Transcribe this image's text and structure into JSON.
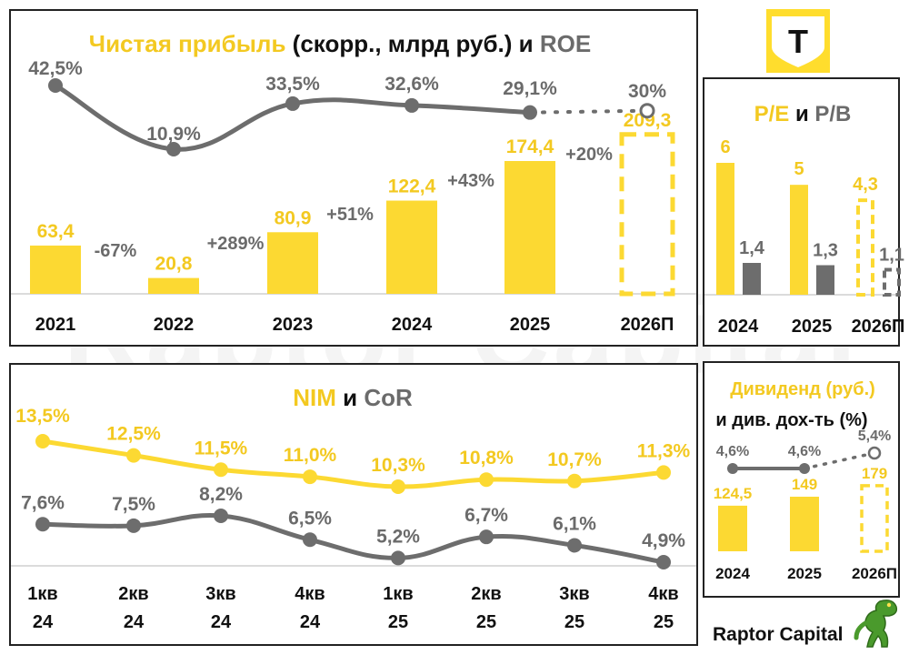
{
  "brand": {
    "name": "Raptor Capital",
    "watermark": "Raptor Capital",
    "logo_letter": "Т",
    "logo_color": "#ffdd2d"
  },
  "colors": {
    "yellow": "#fcd932",
    "yellow_text": "#f3c921",
    "gray": "#6d6d6d",
    "gray_text": "#6b6b6b",
    "dark": "#111111"
  },
  "chart_data": [
    {
      "id": "net-income-roe",
      "type": "bar",
      "title": {
        "part1": "Чистая прибыль",
        "part2": " (скорр., млрд руб.) и ",
        "part3": "ROE"
      },
      "categories": [
        "2021",
        "2022",
        "2023",
        "2024",
        "2025",
        "2026П"
      ],
      "series": [
        {
          "name": "Чистая прибыль (скорр., млрд руб.)",
          "values": [
            63.4,
            20.8,
            80.9,
            122.4,
            174.4,
            209.3
          ],
          "labels": [
            "63,4",
            "20,8",
            "80,9",
            "122,4",
            "174,4",
            "209,3"
          ],
          "forecast_index": 5
        },
        {
          "name": "ROE",
          "type": "line",
          "values": [
            42.5,
            10.9,
            33.5,
            32.6,
            29.1,
            30.0
          ],
          "labels": [
            "42,5%",
            "10,9%",
            "33,5%",
            "32,6%",
            "29,1%",
            "30%"
          ],
          "forecast_index": 5
        }
      ],
      "growth_labels": [
        "-67%",
        "+289%",
        "+51%",
        "+43%",
        "+20%"
      ]
    },
    {
      "id": "pe-pb",
      "type": "bar",
      "title": {
        "part1": "P/E",
        "part2": " и ",
        "part3": "P/B"
      },
      "categories": [
        "2024",
        "2025",
        "2026П"
      ],
      "series": [
        {
          "name": "P/E",
          "values": [
            6,
            5,
            4.3
          ],
          "labels": [
            "6",
            "5",
            "4,3"
          ],
          "forecast_index": 2
        },
        {
          "name": "P/B",
          "values": [
            1.4,
            1.3,
            1.1
          ],
          "labels": [
            "1,4",
            "1,3",
            "1,1"
          ],
          "forecast_index": 2
        }
      ]
    },
    {
      "id": "nim-cor",
      "type": "line",
      "title": {
        "part1": "NIM",
        "part2": " и ",
        "part3": "CoR"
      },
      "categories": [
        [
          "1кв",
          "24"
        ],
        [
          "2кв",
          "24"
        ],
        [
          "3кв",
          "24"
        ],
        [
          "4кв",
          "24"
        ],
        [
          "1кв",
          "25"
        ],
        [
          "2кв",
          "25"
        ],
        [
          "3кв",
          "25"
        ],
        [
          "4кв",
          "25"
        ]
      ],
      "series": [
        {
          "name": "NIM",
          "values": [
            13.5,
            12.5,
            11.5,
            11.0,
            10.3,
            10.8,
            10.7,
            11.3
          ],
          "labels": [
            "13,5%",
            "12,5%",
            "11,5%",
            "11,0%",
            "10,3%",
            "10,8%",
            "10,7%",
            "11,3%"
          ]
        },
        {
          "name": "CoR",
          "values": [
            7.6,
            7.5,
            8.2,
            6.5,
            5.2,
            6.7,
            6.1,
            4.9
          ],
          "labels": [
            "7,6%",
            "7,5%",
            "8,2%",
            "6,5%",
            "5,2%",
            "6,7%",
            "6,1%",
            "4,9%"
          ]
        }
      ]
    },
    {
      "id": "dividend",
      "type": "bar",
      "title": {
        "part1": "Дивиденд (руб.)",
        "line2": "и див. дох-ть (%)"
      },
      "categories": [
        "2024",
        "2025",
        "2026П"
      ],
      "series": [
        {
          "name": "Дивиденд (руб.)",
          "values": [
            124.5,
            149,
            179
          ],
          "labels": [
            "124,5",
            "149",
            "179"
          ],
          "forecast_index": 2
        },
        {
          "name": "Див. доходность",
          "type": "line",
          "values": [
            4.6,
            4.6,
            5.4
          ],
          "labels": [
            "4,6%",
            "4,6%",
            "5,4%"
          ],
          "forecast_index": 2
        }
      ]
    }
  ]
}
